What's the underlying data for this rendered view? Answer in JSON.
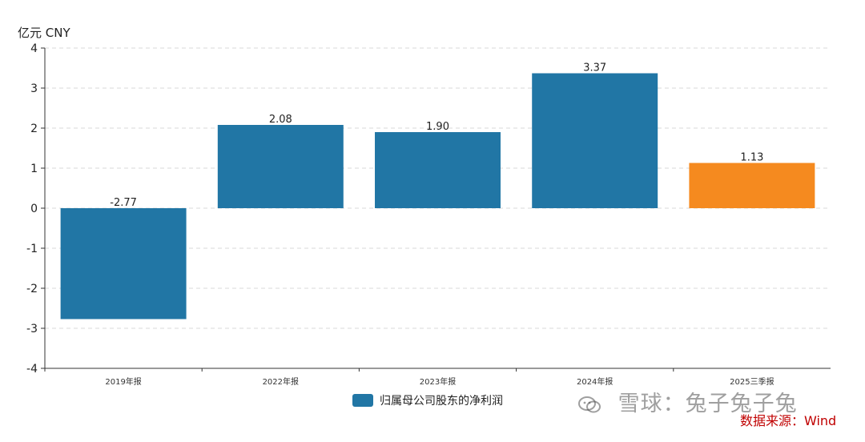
{
  "chart_data": {
    "type": "bar",
    "unit_label": "亿元  CNY",
    "categories": [
      "2019年报",
      "2022年报",
      "2023年报",
      "2024年报",
      "2025三季报"
    ],
    "series": [
      {
        "name": "归属母公司股东的净利润",
        "values": [
          -2.77,
          2.08,
          1.9,
          3.37,
          1.13
        ],
        "data_labels": [
          "-2.77",
          "2.08",
          "1.90",
          "3.37",
          "1.13"
        ],
        "colors": [
          "#2176a5",
          "#2176a5",
          "#2176a5",
          "#2176a5",
          "#f58a1f"
        ]
      }
    ],
    "ylim": [
      -4,
      4
    ],
    "yticks": [
      4,
      3,
      2,
      1,
      0,
      -1,
      -2,
      -3,
      -4
    ],
    "grid": true,
    "legend_placement": "bottom-center"
  },
  "legend": {
    "label": "归属母公司股东的净利润"
  },
  "watermark": {
    "text": "雪球：兔子兔子兔"
  },
  "source": {
    "text": "数据来源：Wind"
  },
  "colors": {
    "primary": "#2176a5",
    "highlight": "#f58a1f",
    "axis": "#333333",
    "grid": "#d9d9d9",
    "source": "#c00000"
  }
}
